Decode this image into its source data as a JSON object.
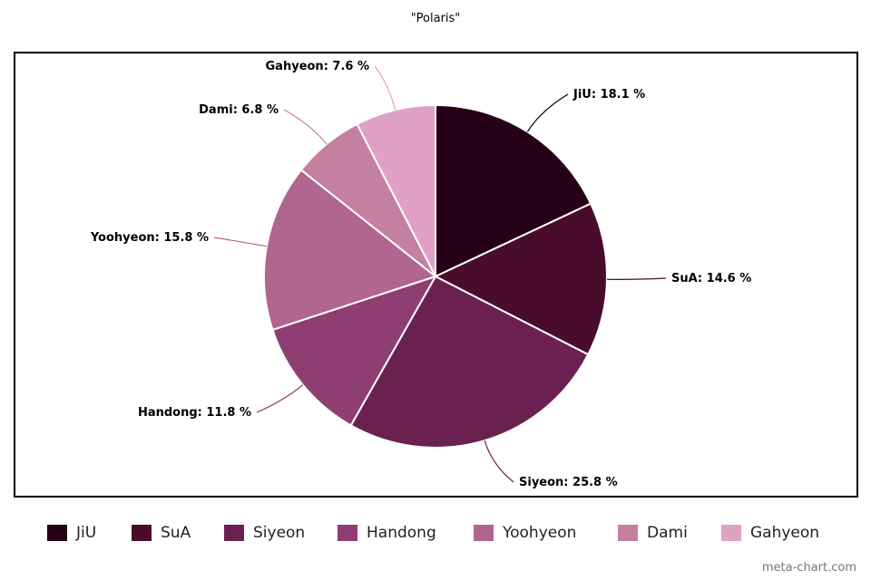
{
  "chart_data": {
    "type": "pie",
    "title": "\"Polaris\"",
    "slices": [
      {
        "name": "JiU",
        "value": 18.1,
        "label": "JiU: 18.1 %",
        "color": "#250016"
      },
      {
        "name": "SuA",
        "value": 14.6,
        "label": "SuA: 14.6 %",
        "color": "#4a0c2c"
      },
      {
        "name": "Siyeon",
        "value": 25.8,
        "label": "Siyeon: 25.8 %",
        "color": "#6b2150"
      },
      {
        "name": "Handong",
        "value": 11.8,
        "label": "Handong: 11.8 %",
        "color": "#8f3e72"
      },
      {
        "name": "Yoohyeon",
        "value": 15.8,
        "label": "Yoohyeon: 15.8 %",
        "color": "#b06690"
      },
      {
        "name": "Dami",
        "value": 6.8,
        "label": "Dami: 6.8 %",
        "color": "#c4809f"
      },
      {
        "name": "Gahyeon",
        "value": 7.6,
        "label": "Gahyeon: 7.6 %",
        "color": "#dfa2c6"
      }
    ],
    "legend_position": "bottom"
  },
  "credit": "meta-chart.com"
}
